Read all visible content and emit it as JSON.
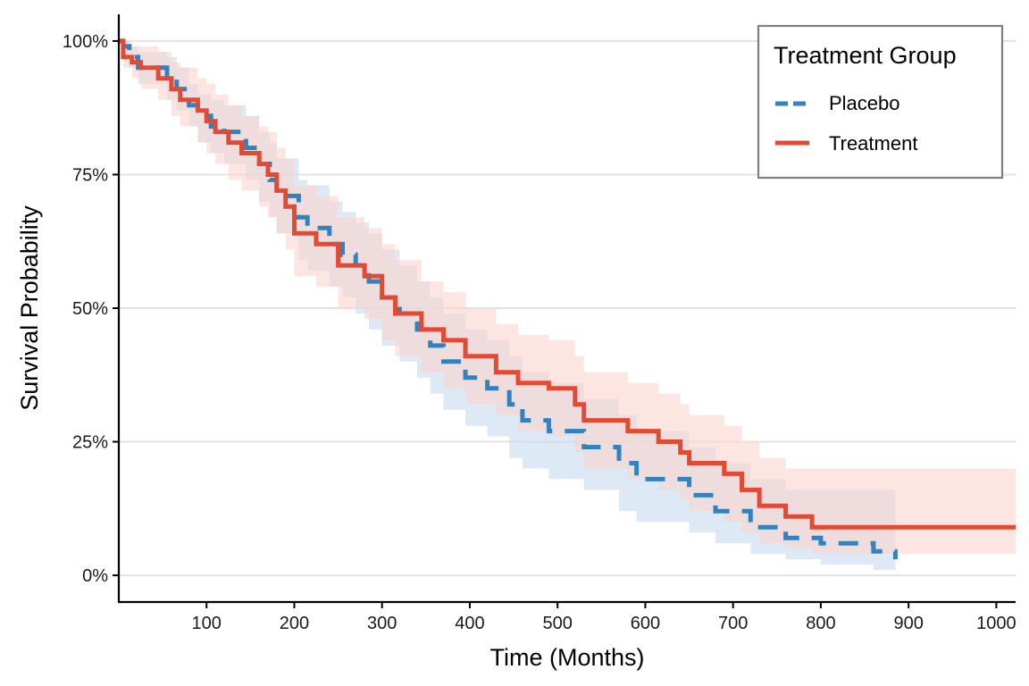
{
  "chart_data": {
    "type": "line",
    "subtype": "kaplan-meier-step",
    "xlabel": "Time (Months)",
    "ylabel": "Survival Probability",
    "xlim": [
      0,
      1022
    ],
    "ylim": [
      -0.05,
      1.05
    ],
    "x_ticks": [
      100,
      200,
      300,
      400,
      500,
      600,
      700,
      800,
      900,
      1000
    ],
    "y_ticks": [
      0,
      0.25,
      0.5,
      0.75,
      1.0
    ],
    "y_tick_labels": [
      "0%",
      "25%",
      "50%",
      "75%",
      "100%"
    ],
    "grid": "horizontal-major",
    "legend": {
      "title": "Treatment Group",
      "position": "top-right",
      "entries": [
        "Placebo",
        "Treatment"
      ]
    },
    "series": [
      {
        "name": "Placebo",
        "color": "#3182bd",
        "linestyle": "dashed",
        "band_color": "#c6dbef",
        "x": [
          0,
          5,
          12,
          22,
          55,
          66,
          80,
          90,
          105,
          120,
          145,
          160,
          172,
          180,
          205,
          215,
          240,
          255,
          270,
          285,
          300,
          320,
          340,
          355,
          370,
          395,
          420,
          445,
          460,
          490,
          530,
          570,
          590,
          650,
          680,
          720,
          760,
          800,
          860,
          885
        ],
        "y": [
          1.0,
          0.99,
          0.97,
          0.95,
          0.93,
          0.91,
          0.88,
          0.86,
          0.84,
          0.83,
          0.8,
          0.77,
          0.74,
          0.71,
          0.67,
          0.65,
          0.62,
          0.6,
          0.58,
          0.55,
          0.52,
          0.49,
          0.46,
          0.43,
          0.4,
          0.37,
          0.35,
          0.32,
          0.29,
          0.27,
          0.24,
          0.21,
          0.18,
          0.15,
          0.12,
          0.09,
          0.07,
          0.06,
          0.045,
          0.03
        ],
        "lower": [
          1.0,
          0.97,
          0.95,
          0.92,
          0.89,
          0.87,
          0.84,
          0.81,
          0.79,
          0.77,
          0.74,
          0.7,
          0.67,
          0.64,
          0.59,
          0.57,
          0.54,
          0.52,
          0.49,
          0.46,
          0.43,
          0.4,
          0.37,
          0.34,
          0.31,
          0.28,
          0.26,
          0.22,
          0.2,
          0.18,
          0.16,
          0.12,
          0.1,
          0.08,
          0.06,
          0.04,
          0.03,
          0.02,
          0.01,
          0.01
        ],
        "upper": [
          1.0,
          1.0,
          0.99,
          0.98,
          0.97,
          0.95,
          0.92,
          0.9,
          0.89,
          0.88,
          0.86,
          0.83,
          0.81,
          0.78,
          0.74,
          0.73,
          0.7,
          0.68,
          0.66,
          0.64,
          0.61,
          0.58,
          0.55,
          0.52,
          0.49,
          0.46,
          0.44,
          0.41,
          0.38,
          0.36,
          0.33,
          0.3,
          0.27,
          0.24,
          0.21,
          0.18,
          0.16,
          0.16,
          0.16,
          0.16
        ]
      },
      {
        "name": "Treatment",
        "color": "#e34a33",
        "linestyle": "solid",
        "band_color": "#fcd5ce",
        "x": [
          0,
          5,
          15,
          25,
          45,
          60,
          70,
          90,
          100,
          110,
          125,
          140,
          160,
          170,
          180,
          190,
          200,
          225,
          250,
          280,
          300,
          315,
          345,
          370,
          395,
          430,
          455,
          490,
          520,
          530,
          580,
          615,
          640,
          650,
          690,
          710,
          730,
          760,
          790,
          805,
          840,
          1022
        ],
        "y": [
          1.0,
          0.97,
          0.96,
          0.95,
          0.93,
          0.91,
          0.89,
          0.87,
          0.85,
          0.83,
          0.81,
          0.79,
          0.77,
          0.75,
          0.72,
          0.69,
          0.64,
          0.62,
          0.58,
          0.56,
          0.52,
          0.49,
          0.46,
          0.44,
          0.41,
          0.38,
          0.36,
          0.35,
          0.32,
          0.29,
          0.27,
          0.25,
          0.23,
          0.21,
          0.19,
          0.16,
          0.13,
          0.11,
          0.09,
          0.09,
          0.09,
          0.09
        ],
        "lower": [
          1.0,
          0.95,
          0.93,
          0.91,
          0.89,
          0.86,
          0.84,
          0.81,
          0.79,
          0.77,
          0.74,
          0.72,
          0.69,
          0.67,
          0.64,
          0.61,
          0.56,
          0.54,
          0.5,
          0.48,
          0.44,
          0.41,
          0.38,
          0.35,
          0.32,
          0.3,
          0.27,
          0.26,
          0.23,
          0.2,
          0.18,
          0.16,
          0.14,
          0.12,
          0.1,
          0.08,
          0.06,
          0.05,
          0.04,
          0.04,
          0.04,
          0.04
        ],
        "upper": [
          1.0,
          1.0,
          0.99,
          0.99,
          0.98,
          0.96,
          0.95,
          0.93,
          0.92,
          0.9,
          0.88,
          0.86,
          0.84,
          0.83,
          0.8,
          0.78,
          0.73,
          0.71,
          0.67,
          0.65,
          0.62,
          0.59,
          0.55,
          0.53,
          0.5,
          0.47,
          0.45,
          0.44,
          0.41,
          0.38,
          0.36,
          0.34,
          0.32,
          0.3,
          0.28,
          0.25,
          0.22,
          0.2,
          0.2,
          0.2,
          0.2,
          0.2
        ]
      }
    ]
  }
}
